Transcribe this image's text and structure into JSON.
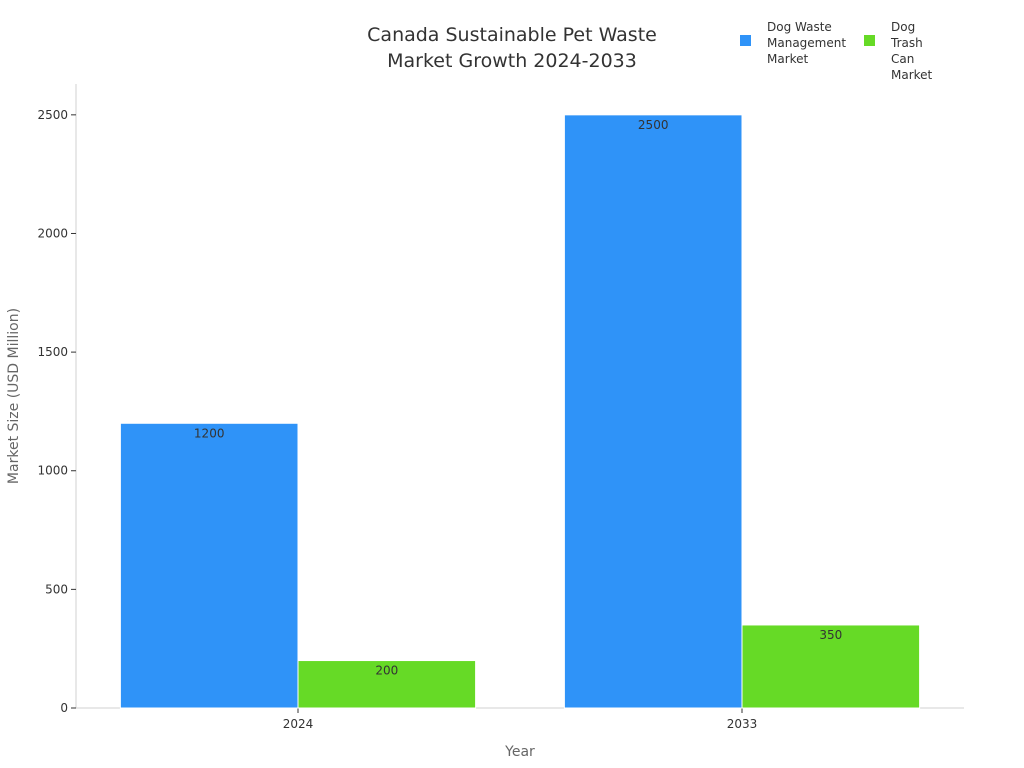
{
  "chart_data": {
    "type": "bar",
    "title": "Canada Sustainable Pet Waste Market Growth 2024-2033",
    "title_lines": [
      "Canada Sustainable Pet Waste",
      "Market Growth 2024-2033"
    ],
    "xlabel": "Year",
    "ylabel": "Market Size (USD Million)",
    "categories": [
      "2024",
      "2033"
    ],
    "ylim": [
      0,
      2630
    ],
    "yticks": [
      0,
      500,
      1000,
      1500,
      2000,
      2500
    ],
    "series": [
      {
        "name": "Dog Waste Management Market",
        "legend_lines": [
          "Dog Waste",
          "Management",
          "Market"
        ],
        "color": "#2f93f8",
        "values": [
          1200,
          2500
        ]
      },
      {
        "name": "Dog Trash Can Market",
        "legend_lines": [
          "Dog Trash",
          "Can Market"
        ],
        "color": "#66da26",
        "values": [
          200,
          350
        ]
      }
    ],
    "legend_position": "top-right",
    "grid": false
  }
}
